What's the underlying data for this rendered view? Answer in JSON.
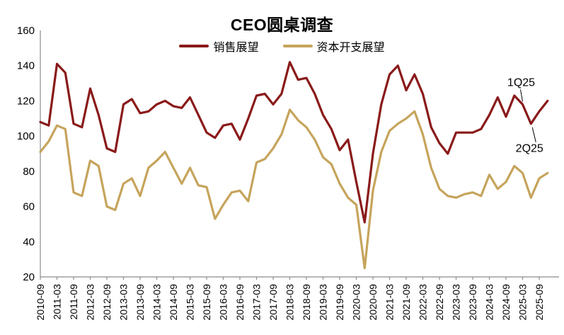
{
  "title": "CEO圆桌调查",
  "legend": {
    "sales": "销售展望",
    "capex": "资本开支展望"
  },
  "colors": {
    "sales": "#8A1A1A",
    "capex": "#C6A45C",
    "axis": "#8C8C8C",
    "text": "#000000"
  },
  "chart_data": {
    "type": "line",
    "title": "CEO圆桌调查",
    "ylim": [
      20,
      160
    ],
    "y_ticks": [
      20,
      40,
      60,
      80,
      100,
      120,
      140,
      160
    ],
    "grid": false,
    "legend_position": "top-center",
    "x_tick_labels": [
      "2010-09",
      "2011-03",
      "2011-09",
      "2012-03",
      "2012-09",
      "2013-03",
      "2013-09",
      "2014-03",
      "2014-09",
      "2015-03",
      "2015-09",
      "2016-03",
      "2016-09",
      "2017-03",
      "2017-09",
      "2018-03",
      "2018-09",
      "2019-03",
      "2019-09",
      "2020-03",
      "2020-09",
      "2021-03",
      "2021-09",
      "2022-03",
      "2022-09",
      "2023-03",
      "2023-09",
      "2024-03",
      "2024-09",
      "2025-03",
      "2025-09"
    ],
    "quarters": [
      "2010-09",
      "2010-12",
      "2011-03",
      "2011-06",
      "2011-09",
      "2011-12",
      "2012-03",
      "2012-06",
      "2012-09",
      "2012-12",
      "2013-03",
      "2013-06",
      "2013-09",
      "2013-12",
      "2014-03",
      "2014-06",
      "2014-09",
      "2014-12",
      "2015-03",
      "2015-06",
      "2015-09",
      "2015-12",
      "2016-03",
      "2016-06",
      "2016-09",
      "2016-12",
      "2017-03",
      "2017-06",
      "2017-09",
      "2017-12",
      "2018-03",
      "2018-06",
      "2018-09",
      "2018-12",
      "2019-03",
      "2019-06",
      "2019-09",
      "2019-12",
      "2020-03",
      "2020-06",
      "2020-09",
      "2020-12",
      "2021-03",
      "2021-06",
      "2021-09",
      "2021-12",
      "2022-03",
      "2022-06",
      "2022-09",
      "2022-12",
      "2023-03",
      "2023-06",
      "2023-09",
      "2023-12",
      "2024-03",
      "2024-06",
      "2024-09",
      "2024-12",
      "2025-03",
      "2025-06",
      "2025-09",
      "2025-12"
    ],
    "series": [
      {
        "name": "销售展望",
        "color": "#8A1A1A",
        "values": [
          108,
          106,
          141,
          136,
          107,
          105,
          127,
          112,
          93,
          91,
          118,
          121,
          113,
          114,
          118,
          120,
          117,
          116,
          122,
          112,
          102,
          99,
          106,
          107,
          98,
          110,
          123,
          124,
          118,
          124,
          142,
          132,
          133,
          124,
          112,
          104,
          92,
          98,
          74,
          51,
          90,
          118,
          135,
          140,
          126,
          135,
          124,
          105,
          96,
          90,
          102,
          102,
          102,
          104,
          112,
          122,
          111,
          123,
          118,
          107,
          114,
          120
        ]
      },
      {
        "name": "资本开支展望",
        "color": "#C6A45C",
        "values": [
          91,
          97,
          106,
          104,
          68,
          66,
          86,
          83,
          60,
          58,
          73,
          76,
          66,
          82,
          86,
          91,
          82,
          73,
          82,
          72,
          71,
          53,
          61,
          68,
          69,
          63,
          85,
          87,
          93,
          101,
          115,
          109,
          105,
          98,
          88,
          84,
          73,
          65,
          61,
          25,
          69,
          91,
          103,
          107,
          110,
          114,
          101,
          82,
          70,
          66,
          65,
          67,
          68,
          66,
          78,
          70,
          74,
          83,
          79,
          65,
          76,
          79
        ]
      }
    ],
    "annotations": [
      {
        "label": "1Q25",
        "series": 0,
        "x_index": 58,
        "position": "above"
      },
      {
        "label": "2Q25",
        "series": 0,
        "x_index": 59,
        "position": "below"
      }
    ]
  }
}
